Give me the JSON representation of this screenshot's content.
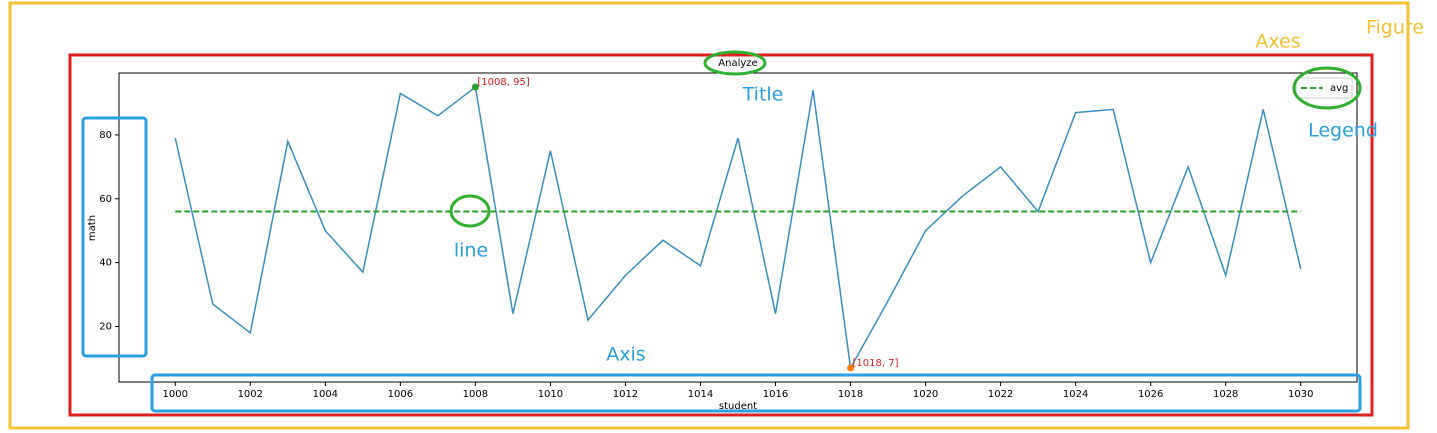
{
  "chart_data": {
    "type": "line",
    "title": "Analyze",
    "xlabel": "student",
    "ylabel": "math",
    "x": [
      1000,
      1001,
      1002,
      1003,
      1004,
      1005,
      1006,
      1007,
      1008,
      1009,
      1010,
      1011,
      1012,
      1013,
      1014,
      1015,
      1016,
      1017,
      1018,
      1019,
      1020,
      1021,
      1022,
      1023,
      1024,
      1025,
      1026,
      1027,
      1028,
      1029,
      1030
    ],
    "series": [
      {
        "color": "#3a8fc0",
        "linestyle": "solid",
        "values": [
          79,
          27,
          18,
          78,
          50,
          37,
          93,
          86,
          95,
          24,
          75,
          22,
          36,
          47,
          39,
          79,
          24,
          94,
          7,
          28,
          50,
          61,
          70,
          56,
          87,
          88,
          40,
          70,
          36,
          88,
          38
        ]
      },
      {
        "name": "avg",
        "color": "#2ca02c",
        "linestyle": "dashed",
        "values": [
          56,
          56,
          56,
          56,
          56,
          56,
          56,
          56,
          56,
          56,
          56,
          56,
          56,
          56,
          56,
          56,
          56,
          56,
          56,
          56,
          56,
          56,
          56,
          56,
          56,
          56,
          56,
          56,
          56,
          56,
          56
        ]
      }
    ],
    "annotations": [
      {
        "x": 1008,
        "y": 95,
        "text": "[1008, 95]",
        "color": "#2ca02c"
      },
      {
        "x": 1018,
        "y": 7,
        "text": "[1018, 7]",
        "color": "#ff7f0e"
      }
    ],
    "xlim": [
      998.5,
      1031.5
    ],
    "xticks": [
      1000,
      1002,
      1004,
      1006,
      1008,
      1010,
      1012,
      1014,
      1016,
      1018,
      1020,
      1022,
      1024,
      1026,
      1028,
      1030
    ],
    "ylim": [
      2.6,
      99.4
    ],
    "yticks": [
      20,
      40,
      60,
      80
    ],
    "legend": "upper-right"
  },
  "overlay_labels": {
    "figure": "Figure",
    "axes": "Axes",
    "title": "Title",
    "legend": "Legend",
    "line": "line",
    "axis": "Axis"
  }
}
